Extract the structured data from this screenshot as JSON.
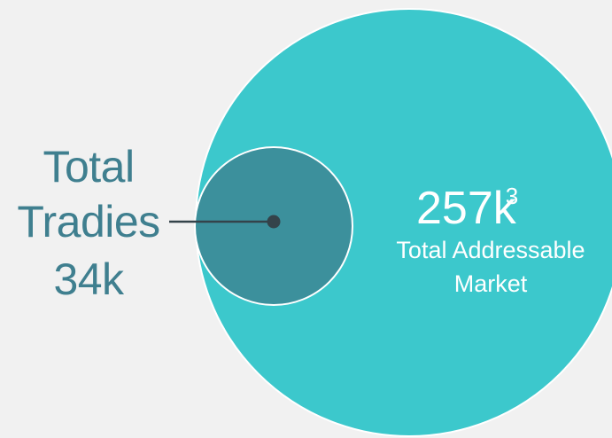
{
  "inner_label": {
    "line1": "Total",
    "line2": "Tradies",
    "value": "34k"
  },
  "outer_label": {
    "value": "257k",
    "superscript": "3",
    "line1": "Total Addressable",
    "line2": "Market"
  },
  "colors": {
    "background": "#f1f1f1",
    "outer_circle": "#3cc8cc",
    "inner_circle": "#3c909c",
    "label_text": "#3f7f8f",
    "connector": "#34434a",
    "circle_outline": "#ffffff"
  }
}
